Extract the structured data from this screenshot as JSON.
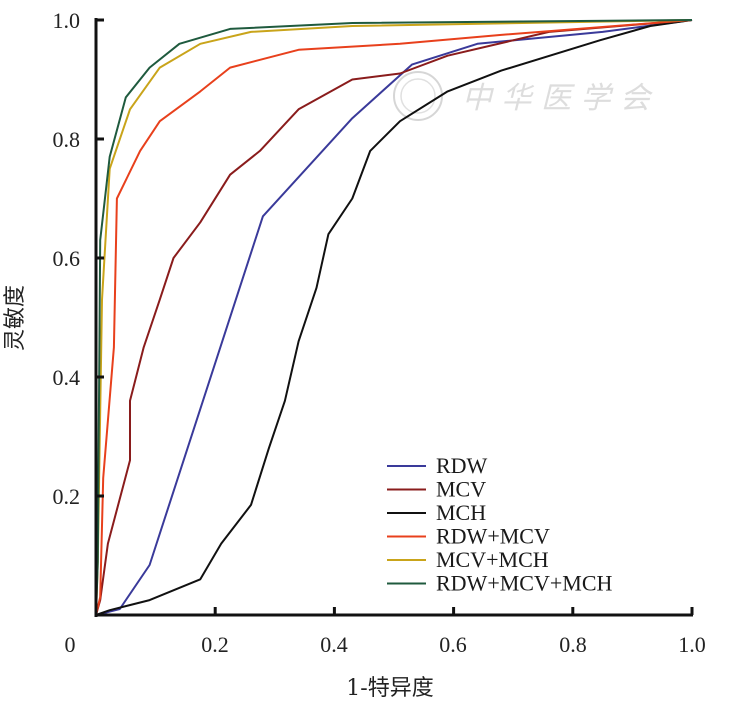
{
  "chart_data": {
    "type": "line",
    "title": "",
    "xlabel": "1-特异度",
    "ylabel": "灵敏度",
    "xlim": [
      0,
      1
    ],
    "ylim": [
      0,
      1
    ],
    "x_ticks": [
      "0",
      "0.2",
      "0.4",
      "0.6",
      "0.8",
      "1.0"
    ],
    "y_ticks": [
      "0.2",
      "0.4",
      "0.6",
      "0.8",
      "1.0"
    ],
    "grid": false,
    "legend_position": "bottom-right",
    "watermark": "中华医学会",
    "series": [
      {
        "name": "RDW",
        "color": "#3a3a9a",
        "x": [
          0,
          0.04,
          0.09,
          0.28,
          0.43,
          0.53,
          0.64,
          0.85,
          1
        ],
        "y": [
          0,
          0.01,
          0.084,
          0.67,
          0.835,
          0.925,
          0.96,
          0.98,
          1
        ]
      },
      {
        "name": "MCV",
        "color": "#8a1c1c",
        "x": [
          0,
          0.007,
          0.02,
          0.057,
          0.057,
          0.08,
          0.107,
          0.13,
          0.175,
          0.225,
          0.275,
          0.34,
          0.43,
          0.51,
          0.59,
          0.76,
          1
        ],
        "y": [
          0,
          0.025,
          0.12,
          0.26,
          0.36,
          0.45,
          0.53,
          0.6,
          0.66,
          0.74,
          0.78,
          0.85,
          0.9,
          0.91,
          0.94,
          0.98,
          1
        ]
      },
      {
        "name": "MCH",
        "color": "#111111",
        "x": [
          0,
          0.023,
          0.09,
          0.175,
          0.21,
          0.26,
          0.29,
          0.317,
          0.34,
          0.37,
          0.39,
          0.43,
          0.46,
          0.51,
          0.59,
          0.68,
          0.846,
          0.93,
          1
        ],
        "y": [
          0,
          0.008,
          0.025,
          0.06,
          0.12,
          0.185,
          0.28,
          0.36,
          0.46,
          0.55,
          0.64,
          0.7,
          0.78,
          0.83,
          0.88,
          0.915,
          0.966,
          0.99,
          1
        ]
      },
      {
        "name": "RDW+MCV",
        "color": "#e8401c",
        "x": [
          0,
          0.007,
          0.012,
          0.03,
          0.035,
          0.074,
          0.107,
          0.175,
          0.225,
          0.34,
          0.51,
          0.68,
          1
        ],
        "y": [
          0,
          0.03,
          0.23,
          0.45,
          0.7,
          0.78,
          0.83,
          0.88,
          0.92,
          0.95,
          0.96,
          0.975,
          1
        ]
      },
      {
        "name": "MCV+MCH",
        "color": "#c9a41a",
        "x": [
          0,
          0.003,
          0.01,
          0.023,
          0.057,
          0.107,
          0.175,
          0.26,
          0.43,
          1
        ],
        "y": [
          0,
          0.09,
          0.53,
          0.75,
          0.85,
          0.92,
          0.96,
          0.98,
          0.99,
          1
        ]
      },
      {
        "name": "RDW+MCV+MCH",
        "color": "#1f5a3e",
        "x": [
          0,
          0.003,
          0.007,
          0.023,
          0.05,
          0.09,
          0.14,
          0.225,
          0.43,
          1
        ],
        "y": [
          0,
          0.09,
          0.63,
          0.77,
          0.87,
          0.92,
          0.96,
          0.985,
          0.995,
          1
        ]
      }
    ]
  }
}
